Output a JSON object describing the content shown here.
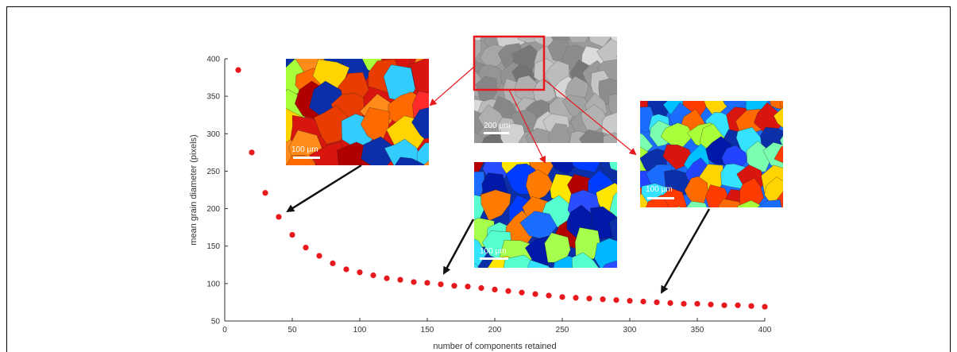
{
  "chart_data": {
    "type": "scatter",
    "xlabel": "number of components retained",
    "ylabel": "mean grain diameter (pixels)",
    "xlim": [
      0,
      400
    ],
    "ylim": [
      50,
      400
    ],
    "xticks": [
      0,
      50,
      100,
      150,
      200,
      250,
      300,
      350,
      400
    ],
    "yticks": [
      50,
      100,
      150,
      200,
      250,
      300,
      350,
      400
    ],
    "marker_color": "#e8191c",
    "grid": false,
    "series": [
      {
        "x": [
          10,
          20,
          30,
          40,
          50,
          60,
          70,
          80,
          90,
          100,
          110,
          120,
          130,
          140,
          150,
          160,
          170,
          180,
          190,
          200,
          210,
          220,
          230,
          240,
          250,
          260,
          270,
          280,
          290,
          300,
          310,
          320,
          330,
          340,
          350,
          360,
          370,
          380,
          390,
          400
        ],
        "y": [
          385,
          275,
          221,
          189,
          165,
          148,
          137,
          127,
          119,
          115,
          111,
          107,
          105,
          102,
          101,
          99,
          97,
          96,
          94,
          92,
          90,
          88,
          86,
          84,
          82,
          81,
          80,
          79,
          78,
          77,
          76,
          75,
          74,
          73,
          73,
          72,
          71,
          71,
          70,
          69
        ]
      }
    ],
    "insets": [
      {
        "name": "grain-map-low-components",
        "scale_label": "100 μm"
      },
      {
        "name": "micrograph-original",
        "scale_label": "200 μm"
      },
      {
        "name": "grain-map-mid-components",
        "scale_label": "100 μm"
      },
      {
        "name": "grain-map-high-components",
        "scale_label": "100 μm"
      }
    ]
  }
}
